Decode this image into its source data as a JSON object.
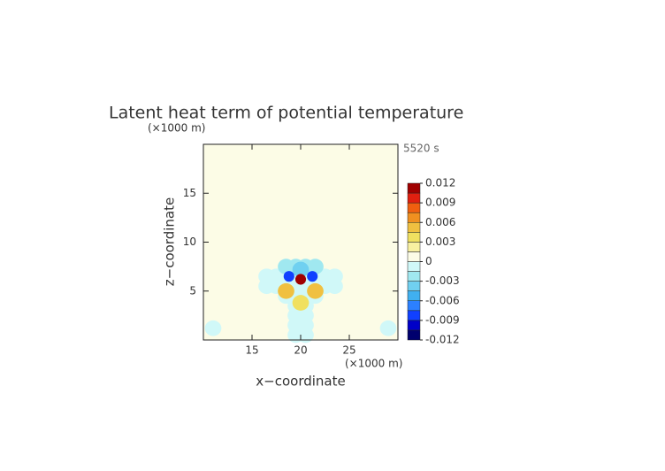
{
  "chart_data": {
    "type": "heatmap",
    "title": "Latent heat term of potential temperature",
    "annotation": "5520 s",
    "x_unit": "(×1000 m)",
    "y_unit": "(×1000 m)",
    "xlabel": "x−coordinate",
    "ylabel": "z−coordinate",
    "xlim": [
      10,
      30
    ],
    "ylim": [
      0,
      20
    ],
    "xticks": [
      15,
      20,
      25
    ],
    "yticks": [
      5,
      10,
      15
    ],
    "x": [
      19.5,
      20.5,
      19.5,
      20.5,
      19.5,
      20.5,
      19.5,
      20.5,
      18.5,
      19.5,
      20.5,
      21.5,
      16.5,
      17.5,
      18.5,
      19.5,
      20.5,
      21.5,
      22.5,
      23.5,
      16.5,
      17.5,
      18.5,
      19.5,
      20.5,
      21.5,
      22.5,
      23.5,
      18.5,
      19.5,
      20.5,
      21.5,
      11,
      29,
      20,
      18.5,
      21.5,
      20,
      18.8,
      21.2,
      20
    ],
    "y": [
      0.5,
      0.5,
      1.5,
      1.5,
      2.5,
      2.5,
      3.5,
      3.5,
      4.5,
      4.5,
      4.5,
      4.5,
      5.5,
      5.5,
      5.5,
      5.5,
      5.5,
      5.5,
      5.5,
      5.5,
      6.5,
      6.5,
      6.5,
      6.5,
      6.5,
      6.5,
      6.5,
      6.5,
      7.5,
      7.5,
      7.5,
      7.5,
      1.2,
      1.2,
      3.8,
      5,
      5,
      7.2,
      6.5,
      6.5,
      6.2
    ],
    "values": [
      -0.001,
      -0.001,
      -0.001,
      -0.001,
      -0.001,
      -0.001,
      -0.001,
      -0.001,
      -0.001,
      -0.001,
      -0.001,
      -0.001,
      -0.001,
      -0.001,
      -0.001,
      -0.001,
      -0.001,
      -0.001,
      -0.001,
      -0.001,
      -0.001,
      -0.001,
      -0.001,
      -0.001,
      -0.001,
      -0.001,
      -0.001,
      -0.001,
      -0.002,
      -0.002,
      -0.002,
      -0.002,
      -0.001,
      -0.001,
      0.004,
      0.005,
      0.005,
      -0.004,
      -0.009,
      -0.009,
      0.012
    ],
    "colorbar": {
      "levels": [
        -0.012,
        -0.0105,
        -0.009,
        -0.0075,
        -0.006,
        -0.0045,
        -0.003,
        -0.0015,
        0,
        0.0015,
        0.003,
        0.0045,
        0.006,
        0.0075,
        0.009,
        0.0105,
        0.012
      ],
      "colors": [
        "#00006e",
        "#0000c8",
        "#1040ff",
        "#2c80ff",
        "#40b0f0",
        "#70d0f0",
        "#a0e8f0",
        "#d0f8f8",
        "#fcfce6",
        "#f8f0a0",
        "#f0e060",
        "#f0c040",
        "#f09020",
        "#f06010",
        "#e02010",
        "#a00000"
      ],
      "ticks": [
        0.012,
        0.009,
        0.006,
        0.003,
        0,
        -0.003,
        -0.006,
        -0.009,
        -0.012
      ]
    }
  }
}
